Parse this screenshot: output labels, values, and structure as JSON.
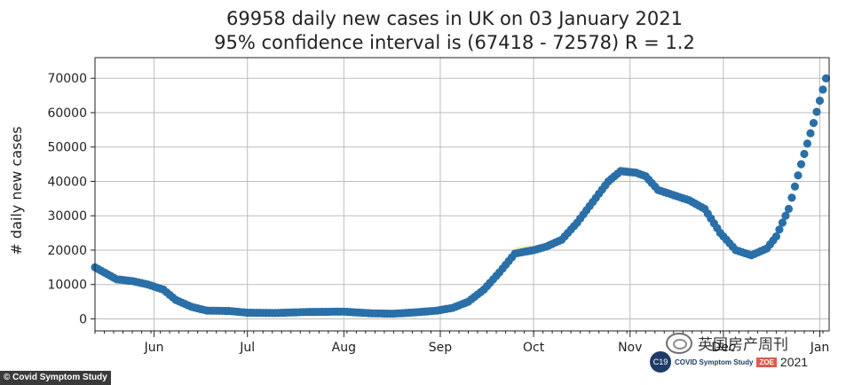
{
  "chart_data": {
    "type": "scatter",
    "title_line1": "69958 daily new cases in UK on 03 January 2021",
    "title_line2": "95% confidence interval is (67418 - 72578) R = 1.2",
    "ylabel": "# daily new cases",
    "xlabel": "",
    "xlim": [
      "2020-05-13",
      "2021-01-04"
    ],
    "ylim": [
      -3500,
      76000
    ],
    "y_ticks": [
      0,
      10000,
      20000,
      30000,
      40000,
      50000,
      60000,
      70000
    ],
    "x_ticks": [
      {
        "date": "2020-06-01",
        "label": "Jun"
      },
      {
        "date": "2020-07-01",
        "label": "Jul"
      },
      {
        "date": "2020-08-01",
        "label": "Aug"
      },
      {
        "date": "2020-09-01",
        "label": "Sep"
      },
      {
        "date": "2020-10-01",
        "label": "Oct"
      },
      {
        "date": "2020-11-01",
        "label": "Nov"
      },
      {
        "date": "2020-12-01",
        "label": "Dec"
      },
      {
        "date": "2021-01-01",
        "label": "Jan"
      }
    ],
    "grid": true,
    "series_color": "#2a6fa8",
    "ci_color": "#f3e7a0",
    "points": [
      [
        "2020-05-13",
        15000
      ],
      [
        "2020-05-16",
        13500
      ],
      [
        "2020-05-20",
        11500
      ],
      [
        "2020-05-25",
        11000
      ],
      [
        "2020-05-30",
        10000
      ],
      [
        "2020-06-04",
        8500
      ],
      [
        "2020-06-08",
        5500
      ],
      [
        "2020-06-13",
        3500
      ],
      [
        "2020-06-18",
        2400
      ],
      [
        "2020-06-25",
        2300
      ],
      [
        "2020-07-01",
        1800
      ],
      [
        "2020-07-10",
        1700
      ],
      [
        "2020-07-20",
        2000
      ],
      [
        "2020-08-01",
        2100
      ],
      [
        "2020-08-10",
        1600
      ],
      [
        "2020-08-17",
        1500
      ],
      [
        "2020-08-24",
        1900
      ],
      [
        "2020-08-31",
        2400
      ],
      [
        "2020-09-05",
        3200
      ],
      [
        "2020-09-10",
        5000
      ],
      [
        "2020-09-15",
        8500
      ],
      [
        "2020-09-20",
        13500
      ],
      [
        "2020-09-25",
        19000
      ],
      [
        "2020-10-01",
        20000
      ],
      [
        "2020-10-05",
        21000
      ],
      [
        "2020-10-10",
        23000
      ],
      [
        "2020-10-15",
        28000
      ],
      [
        "2020-10-20",
        34000
      ],
      [
        "2020-10-25",
        40000
      ],
      [
        "2020-10-29",
        43000
      ],
      [
        "2020-11-03",
        42500
      ],
      [
        "2020-11-06",
        41500
      ],
      [
        "2020-11-10",
        37500
      ],
      [
        "2020-11-15",
        36000
      ],
      [
        "2020-11-20",
        34500
      ],
      [
        "2020-11-25",
        32000
      ],
      [
        "2020-11-30",
        25000
      ],
      [
        "2020-12-05",
        20000
      ],
      [
        "2020-12-10",
        18500
      ],
      [
        "2020-12-15",
        20500
      ],
      [
        "2020-12-18",
        24000
      ],
      [
        "2020-12-22",
        32000
      ],
      [
        "2020-12-26",
        45000
      ],
      [
        "2020-12-30",
        57000
      ],
      [
        "2021-01-03",
        69958
      ]
    ],
    "ci_points": [
      [
        "2020-09-25",
        18000,
        21000
      ],
      [
        "2020-10-01",
        19000,
        21500
      ],
      [
        "2020-10-20",
        33000,
        35500
      ],
      [
        "2020-10-29",
        41500,
        44500
      ],
      [
        "2020-11-03",
        41500,
        43800
      ],
      [
        "2021-01-03",
        67418,
        72578
      ]
    ]
  },
  "credit": "© Covid Symptom Study",
  "logo": {
    "icon_text": "C19",
    "name": "COVID Symptom Study",
    "partner": "ZOE",
    "year": "2021"
  },
  "watermark_text": "英国房产周刊"
}
